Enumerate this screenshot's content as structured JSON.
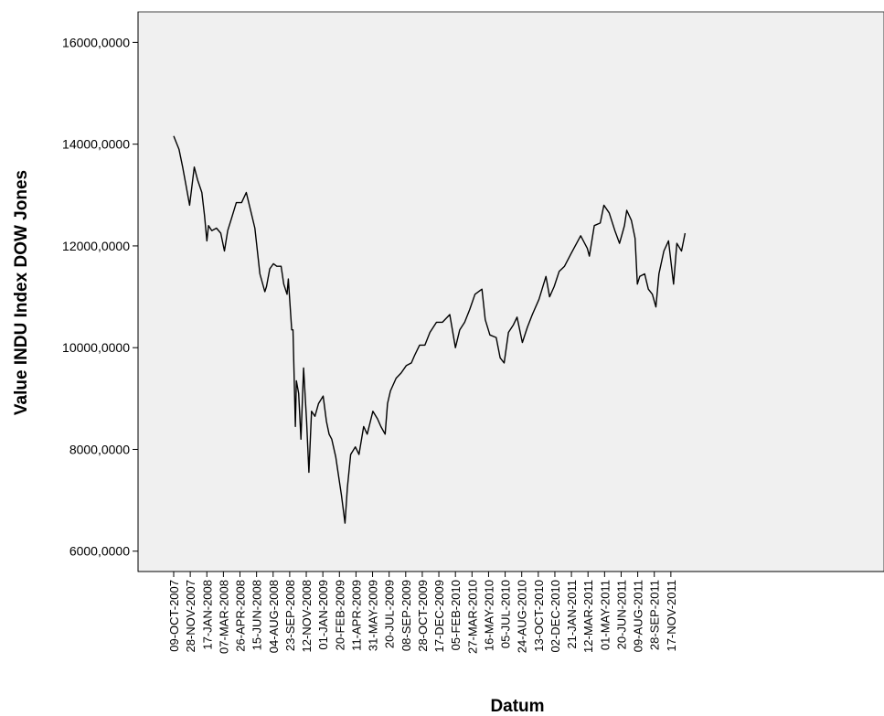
{
  "chart_data": {
    "type": "line",
    "title": "",
    "xlabel": "Datum",
    "ylabel": "Value INDU Index DOW Jones",
    "ylim": [
      5600,
      16600
    ],
    "y_ticks": [
      6000,
      8000,
      10000,
      12000,
      14000,
      16000
    ],
    "y_tick_labels": [
      "6000,0000",
      "8000,0000",
      "10000,0000",
      "12000,0000",
      "14000,0000",
      "16000,0000"
    ],
    "x_tick_labels": [
      "09-OCT-2007",
      "28-NOV-2007",
      "17-JAN-2008",
      "07-MAR-2008",
      "26-APR-2008",
      "15-JUN-2008",
      "04-AUG-2008",
      "23-SEP-2008",
      "12-NOV-2008",
      "01-JAN-2009",
      "20-FEB-2009",
      "11-APR-2009",
      "31-MAY-2009",
      "20-JUL-2009",
      "08-SEP-2009",
      "28-OCT-2009",
      "17-DEC-2009",
      "05-FEB-2010",
      "27-MAR-2010",
      "16-MAY-2010",
      "05-JUL-2010",
      "24-AUG-2010",
      "13-OCT-2010",
      "02-DEC-2010",
      "21-JAN-2011",
      "12-MAR-2011",
      "01-MAY-2011",
      "20-JUN-2011",
      "09-AUG-2011",
      "28-SEP-2011",
      "17-NOV-2011"
    ],
    "grid": false,
    "legend": "none",
    "colors": {
      "plot_background": "#f0f0f0",
      "line": "#000000",
      "axis": "#000000"
    },
    "series": [
      {
        "x": [
          "2007-10-09",
          "2007-10-25",
          "2007-11-05",
          "2007-11-15",
          "2007-11-26",
          "2007-12-10",
          "2007-12-20",
          "2008-01-02",
          "2008-01-10",
          "2008-01-17",
          "2008-01-22",
          "2008-02-01",
          "2008-02-15",
          "2008-02-28",
          "2008-03-10",
          "2008-03-20",
          "2008-04-01",
          "2008-04-15",
          "2008-05-01",
          "2008-05-15",
          "2008-05-30",
          "2008-06-10",
          "2008-06-25",
          "2008-07-10",
          "2008-07-15",
          "2008-07-25",
          "2008-08-05",
          "2008-08-15",
          "2008-08-28",
          "2008-09-05",
          "2008-09-15",
          "2008-09-19",
          "2008-09-29",
          "2008-10-03",
          "2008-10-10",
          "2008-10-13",
          "2008-10-20",
          "2008-10-27",
          "2008-11-04",
          "2008-11-13",
          "2008-11-20",
          "2008-11-28",
          "2008-12-08",
          "2008-12-19",
          "2009-01-02",
          "2009-01-12",
          "2009-01-20",
          "2009-01-28",
          "2009-02-09",
          "2009-02-18",
          "2009-02-26",
          "2009-03-09",
          "2009-03-16",
          "2009-03-26",
          "2009-04-09",
          "2009-04-20",
          "2009-05-04",
          "2009-05-15",
          "2009-06-01",
          "2009-06-15",
          "2009-06-25",
          "2009-07-08",
          "2009-07-15",
          "2009-07-24",
          "2009-08-10",
          "2009-08-25",
          "2009-09-10",
          "2009-09-25",
          "2009-10-05",
          "2009-10-20",
          "2009-11-05",
          "2009-11-20",
          "2009-12-10",
          "2009-12-28",
          "2010-01-19",
          "2010-02-05",
          "2010-02-18",
          "2010-03-05",
          "2010-03-20",
          "2010-04-05",
          "2010-04-26",
          "2010-05-06",
          "2010-05-20",
          "2010-06-08",
          "2010-06-20",
          "2010-07-02",
          "2010-07-15",
          "2010-07-30",
          "2010-08-10",
          "2010-08-26",
          "2010-09-10",
          "2010-09-25",
          "2010-10-15",
          "2010-11-05",
          "2010-11-16",
          "2010-11-30",
          "2010-12-15",
          "2010-12-31",
          "2011-01-20",
          "2011-02-18",
          "2011-03-10",
          "2011-03-16",
          "2011-03-31",
          "2011-04-18",
          "2011-04-29",
          "2011-05-15",
          "2011-06-01",
          "2011-06-15",
          "2011-06-30",
          "2011-07-07",
          "2011-07-21",
          "2011-08-01",
          "2011-08-08",
          "2011-08-15",
          "2011-08-30",
          "2011-09-10",
          "2011-09-22",
          "2011-10-03",
          "2011-10-12",
          "2011-10-27",
          "2011-11-10",
          "2011-11-25",
          "2011-12-05",
          "2011-12-19",
          "2011-12-30"
        ],
        "values": [
          14160,
          13900,
          13550,
          13200,
          12800,
          13550,
          13300,
          13050,
          12600,
          12100,
          12400,
          12300,
          12350,
          12250,
          11900,
          12300,
          12550,
          12850,
          12850,
          13050,
          12650,
          12350,
          11450,
          11100,
          11200,
          11550,
          11650,
          11600,
          11600,
          11250,
          11050,
          11350,
          10350,
          10350,
          8450,
          9350,
          9100,
          8200,
          9600,
          8550,
          7550,
          8750,
          8650,
          8900,
          9050,
          8550,
          8300,
          8200,
          7850,
          7450,
          7100,
          6550,
          7250,
          7900,
          8050,
          7900,
          8450,
          8300,
          8750,
          8600,
          8450,
          8300,
          8900,
          9150,
          9400,
          9500,
          9650,
          9700,
          9850,
          10050,
          10050,
          10300,
          10500,
          10500,
          10650,
          10000,
          10350,
          10500,
          10750,
          11050,
          11150,
          10550,
          10250,
          10200,
          9800,
          9700,
          10300,
          10450,
          10600,
          10100,
          10400,
          10650,
          10950,
          11400,
          11000,
          11200,
          11500,
          11600,
          11850,
          12200,
          11950,
          11800,
          12400,
          12450,
          12800,
          12650,
          12300,
          12050,
          12400,
          12700,
          12500,
          12150,
          11250,
          11400,
          11450,
          11150,
          11050,
          10800,
          11450,
          11900,
          12100,
          11250,
          12050,
          11900,
          12250
        ]
      }
    ]
  }
}
